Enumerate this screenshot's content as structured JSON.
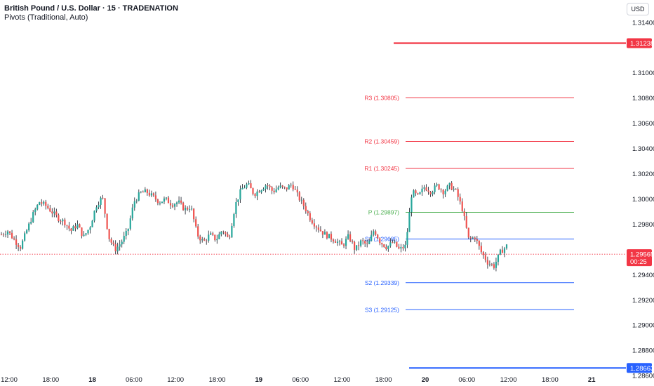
{
  "header": {
    "title": "British Pound / U.S. Dollar · 15 · TRADENATION",
    "indicator": "Pivots (Traditional, Auto)",
    "currency": "USD"
  },
  "colors": {
    "up": "#26a69a",
    "down": "#ef5350",
    "wick": "#131722",
    "resistance": "#f23645",
    "pivot": "#4caf50",
    "support": "#2962ff",
    "current": "#f23645"
  },
  "chart_data": {
    "type": "candlestick",
    "y_axis": {
      "range": [
        1.2852,
        1.3158
      ],
      "tick_labels": [
        "1.31400",
        "1.31000",
        "1.30800",
        "1.30600",
        "1.30400",
        "1.30200",
        "1.30000",
        "1.29800",
        "1.29400",
        "1.29200",
        "1.29000",
        "1.28800",
        "1.28600"
      ],
      "tick_values": [
        1.314,
        1.31,
        1.308,
        1.306,
        1.304,
        1.302,
        1.3,
        1.298,
        1.294,
        1.292,
        1.29,
        1.288,
        1.286
      ]
    },
    "x_axis": {
      "tick_labels": [
        {
          "label": "12:00",
          "bold": false
        },
        {
          "label": "18:00",
          "bold": false
        },
        {
          "label": "18",
          "bold": true
        },
        {
          "label": "06:00",
          "bold": false
        },
        {
          "label": "12:00",
          "bold": false
        },
        {
          "label": "18:00",
          "bold": false
        },
        {
          "label": "19",
          "bold": true
        },
        {
          "label": "06:00",
          "bold": false
        },
        {
          "label": "12:00",
          "bold": false
        },
        {
          "label": "18:00",
          "bold": false
        },
        {
          "label": "20",
          "bold": true
        },
        {
          "label": "06:00",
          "bold": false
        },
        {
          "label": "12:00",
          "bold": false
        },
        {
          "label": "18:00",
          "bold": false
        },
        {
          "label": "21",
          "bold": true
        }
      ]
    },
    "pivots": [
      {
        "name": "R3",
        "label": "R3 (1.30805)",
        "value": 1.30805,
        "kind": "resistance"
      },
      {
        "name": "R2",
        "label": "R2 (1.30459)",
        "value": 1.30459,
        "kind": "resistance"
      },
      {
        "name": "R1",
        "label": "R1 (1.30245)",
        "value": 1.30245,
        "kind": "resistance"
      },
      {
        "name": "P",
        "label": "P (1.29897)",
        "value": 1.29897,
        "kind": "pivot"
      },
      {
        "name": "S1",
        "label": "S1 (1.29685)",
        "value": 1.29685,
        "kind": "support"
      },
      {
        "name": "S2",
        "label": "S2 (1.29339)",
        "value": 1.29339,
        "kind": "support"
      },
      {
        "name": "S3",
        "label": "S3 (1.29125)",
        "value": 1.29125,
        "kind": "support"
      }
    ],
    "horizontal_levels": [
      {
        "label": "1.31238",
        "value": 1.31238,
        "color": "#f23645"
      },
      {
        "label": "1.28663",
        "value": 1.28663,
        "color": "#2962ff"
      }
    ],
    "current_price": {
      "label": "1.29565",
      "value": 1.29565,
      "countdown": "00:25"
    },
    "price_path": [
      1.2972,
      1.2975,
      1.2968,
      1.2962,
      1.2975,
      1.2988,
      1.2998,
      1.2995,
      1.299,
      1.2985,
      1.2982,
      1.2975,
      1.298,
      1.297,
      1.2978,
      1.2995,
      1.3002,
      1.297,
      1.296,
      1.2966,
      1.2975,
      1.2998,
      1.3005,
      1.3006,
      1.3002,
      1.2998,
      1.3,
      1.2996,
      1.2998,
      1.2992,
      1.2994,
      1.2972,
      1.2966,
      1.2972,
      1.2968,
      1.2976,
      1.2968,
      1.2995,
      1.3008,
      1.3012,
      1.3004,
      1.3008,
      1.3012,
      1.3006,
      1.301,
      1.3008,
      1.3012,
      1.3002,
      1.2994,
      1.2984,
      1.2978,
      1.2973,
      1.297,
      1.2967,
      1.2963,
      1.2971,
      1.296,
      1.2967,
      1.2963,
      1.2976,
      1.2966,
      1.2962,
      1.2966,
      1.296,
      1.2963,
      1.3006,
      1.3002,
      1.301,
      1.3006,
      1.3011,
      1.3006,
      1.3011,
      1.3006,
      1.2992,
      1.2968,
      1.297,
      1.2958,
      1.295,
      1.2947,
      1.2958,
      1.2963
    ]
  }
}
